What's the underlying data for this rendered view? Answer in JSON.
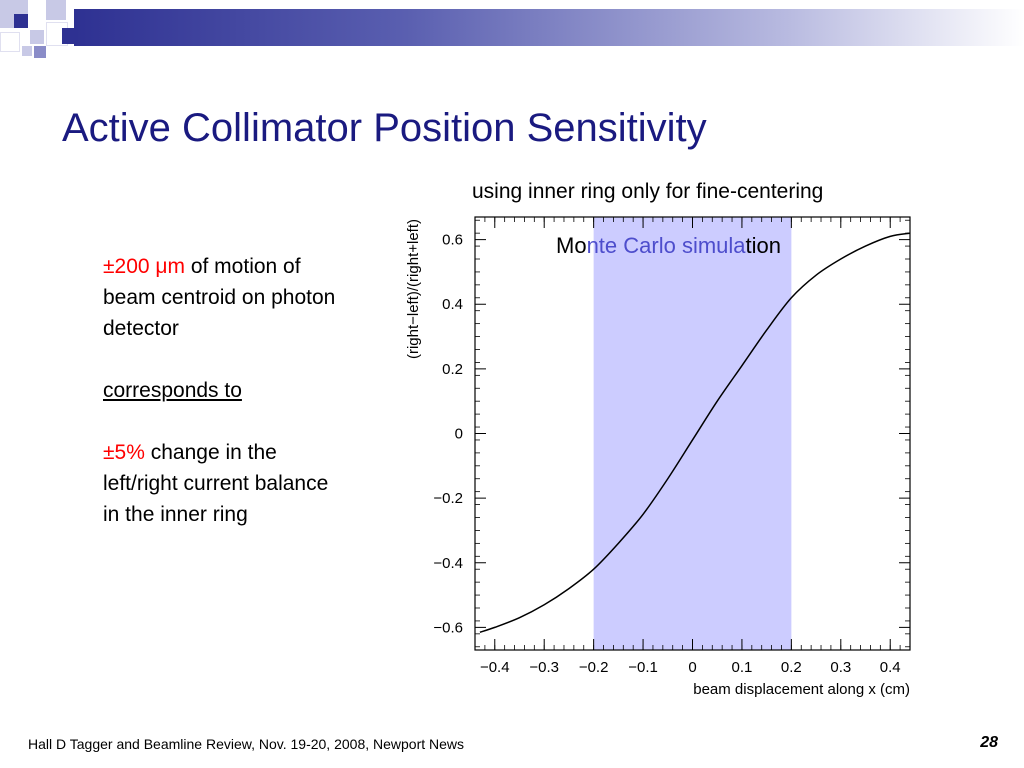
{
  "slide": {
    "title": "Active Collimator Position Sensitivity",
    "subtitle": "using inner ring only for fine-centering",
    "footer": "Hall D Tagger and Beamline Review, Nov. 19-20, 2008, Newport News",
    "page_number": "28"
  },
  "left_text": {
    "line1_red": "±200 μm",
    "line1_rest": " of motion of beam centroid on photon detector",
    "line2": "corresponds to",
    "line3_red": "±5%",
    "line3_rest": " change in the left/right current balance in the inner ring"
  },
  "colors": {
    "title": "#1a1a80",
    "highlight_band": "#ccccff",
    "annotation_part": "#4d4dcc",
    "red_text": "#ff0000"
  },
  "chart_data": {
    "type": "line",
    "xlabel": "beam displacement along x (cm)",
    "ylabel": "(right−left)/(right+left)",
    "xlim": [
      -0.44,
      0.44
    ],
    "ylim": [
      -0.67,
      0.67
    ],
    "x_ticks": [
      -0.4,
      -0.3,
      -0.2,
      -0.1,
      0,
      0.1,
      0.2,
      0.3,
      0.4
    ],
    "x_tick_labels": [
      "−0.4",
      "−0.3",
      "−0.2",
      "−0.1",
      "0",
      "0.1",
      "0.2",
      "0.3",
      "0.4"
    ],
    "y_ticks": [
      -0.6,
      -0.4,
      -0.2,
      0,
      0.2,
      0.4,
      0.6
    ],
    "y_tick_labels": [
      "−0.6",
      "−0.4",
      "−0.2",
      "0",
      "0.2",
      "0.4",
      "0.6"
    ],
    "grid": false,
    "highlight_region": {
      "x": [
        -0.2,
        0.2
      ]
    },
    "annotation": "Monte Carlo simulation",
    "series": [
      {
        "x": [
          -0.43,
          -0.4,
          -0.35,
          -0.3,
          -0.25,
          -0.2,
          -0.15,
          -0.1,
          -0.05,
          0,
          0.05,
          0.1,
          0.15,
          0.2,
          0.25,
          0.3,
          0.35,
          0.4,
          0.44
        ],
        "y": [
          -0.615,
          -0.6,
          -0.57,
          -0.53,
          -0.48,
          -0.42,
          -0.34,
          -0.25,
          -0.14,
          -0.02,
          0.1,
          0.21,
          0.32,
          0.42,
          0.49,
          0.54,
          0.58,
          0.61,
          0.62
        ]
      }
    ]
  }
}
